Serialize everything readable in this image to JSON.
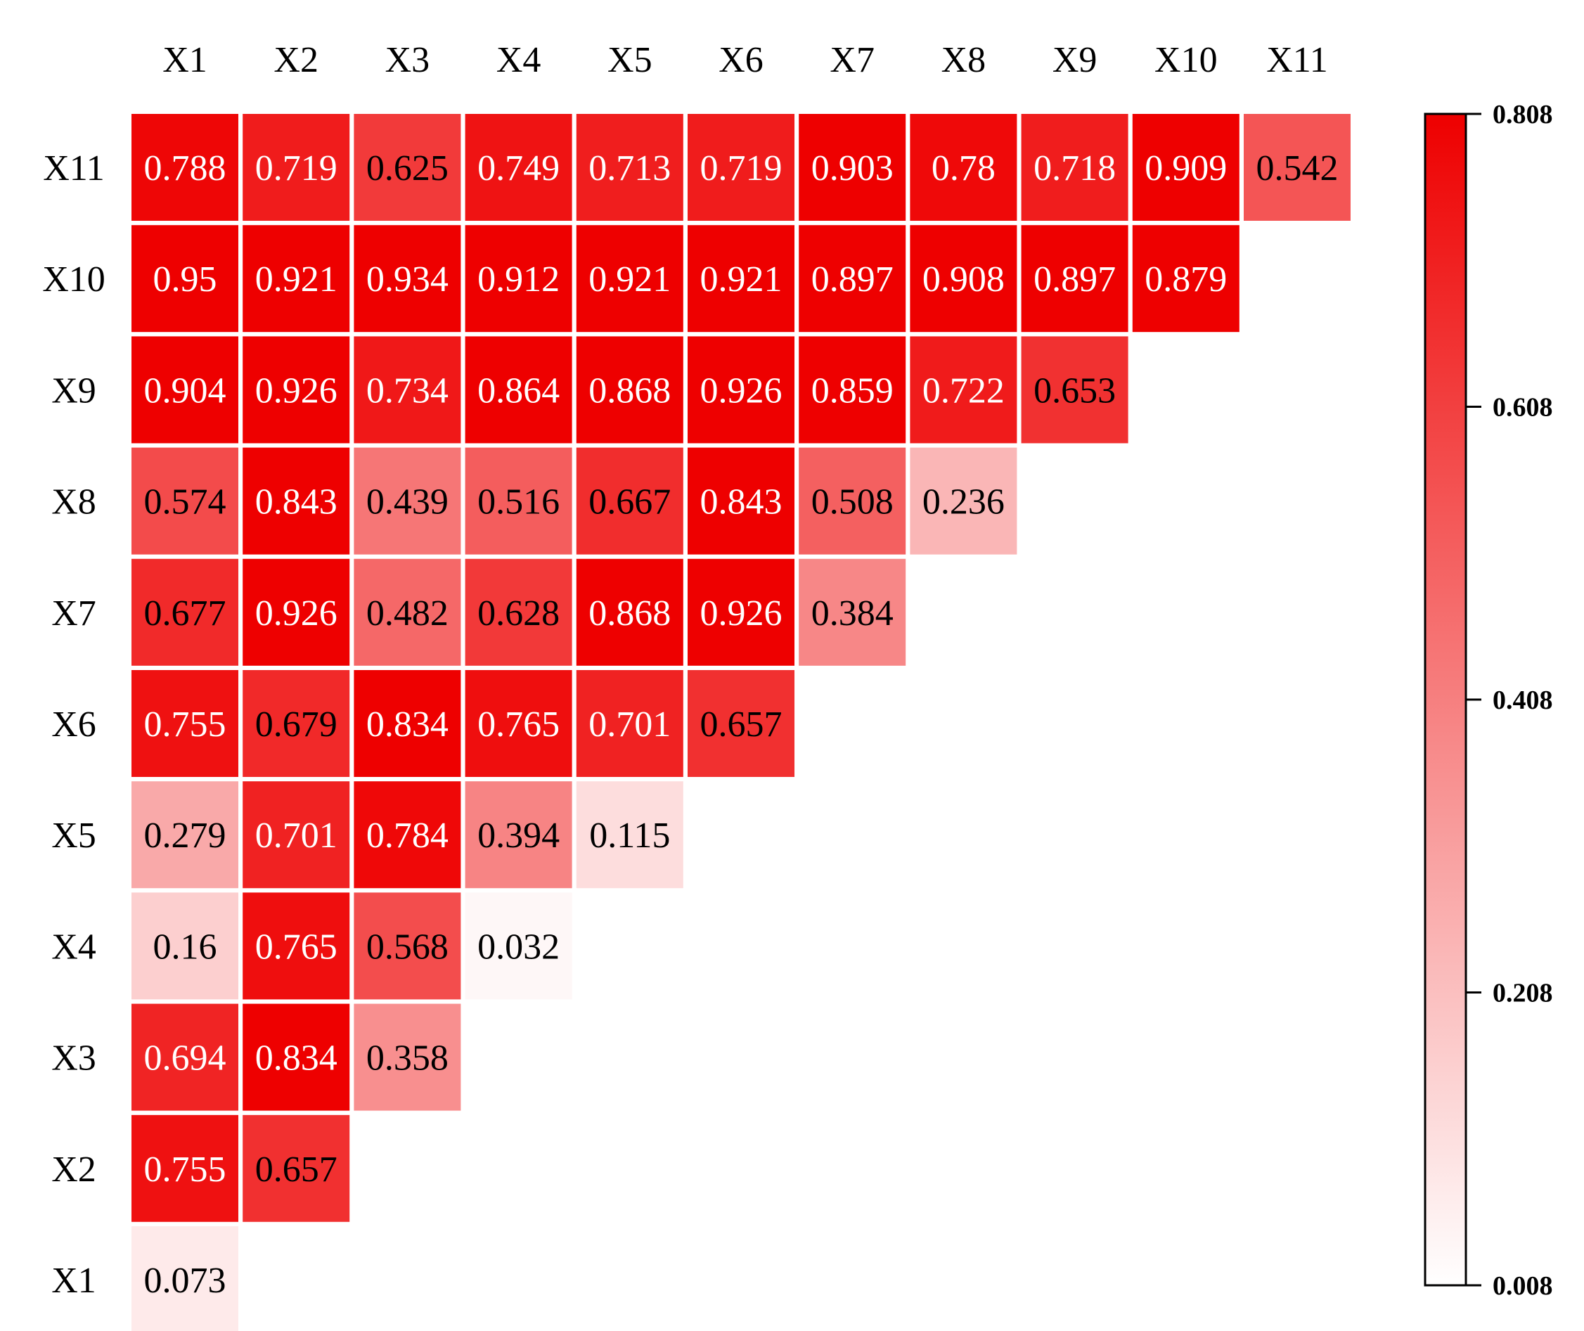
{
  "chart_data": {
    "type": "heatmap",
    "x_labels": [
      "X1",
      "X2",
      "X3",
      "X4",
      "X5",
      "X6",
      "X7",
      "X8",
      "X9",
      "X10",
      "X11"
    ],
    "y_labels": [
      "X11",
      "X10",
      "X9",
      "X8",
      "X7",
      "X6",
      "X5",
      "X4",
      "X3",
      "X2",
      "X1"
    ],
    "rows": [
      {
        "label": "X11",
        "values": [
          0.788,
          0.719,
          0.625,
          0.749,
          0.713,
          0.719,
          0.903,
          0.78,
          0.718,
          0.909,
          0.542
        ]
      },
      {
        "label": "X10",
        "values": [
          0.95,
          0.921,
          0.934,
          0.912,
          0.921,
          0.921,
          0.897,
          0.908,
          0.897,
          0.879
        ]
      },
      {
        "label": "X9",
        "values": [
          0.904,
          0.926,
          0.734,
          0.864,
          0.868,
          0.926,
          0.859,
          0.722,
          0.653
        ]
      },
      {
        "label": "X8",
        "values": [
          0.574,
          0.843,
          0.439,
          0.516,
          0.667,
          0.843,
          0.508,
          0.236
        ]
      },
      {
        "label": "X7",
        "values": [
          0.677,
          0.926,
          0.482,
          0.628,
          0.868,
          0.926,
          0.384
        ]
      },
      {
        "label": "X6",
        "values": [
          0.755,
          0.679,
          0.834,
          0.765,
          0.701,
          0.657
        ]
      },
      {
        "label": "X5",
        "values": [
          0.279,
          0.701,
          0.784,
          0.394,
          0.115
        ]
      },
      {
        "label": "X4",
        "values": [
          0.16,
          0.765,
          0.568,
          0.032
        ]
      },
      {
        "label": "X3",
        "values": [
          0.694,
          0.834,
          0.358
        ]
      },
      {
        "label": "X2",
        "values": [
          0.755,
          0.657
        ]
      },
      {
        "label": "X1",
        "values": [
          0.073
        ]
      }
    ],
    "colorbar": {
      "min": 0.008,
      "max": 0.808,
      "ticks": [
        0.808,
        0.608,
        0.408,
        0.208,
        0.008
      ],
      "tick_labels": [
        "0.808",
        "0.608",
        "0.408",
        "0.208",
        "0.008"
      ],
      "color_low": "#ffffff",
      "color_high": "#ee0000"
    },
    "colors": {
      "cell_border": "#ffffff",
      "text_dark": "#000000",
      "text_light": "#ffffff"
    }
  }
}
